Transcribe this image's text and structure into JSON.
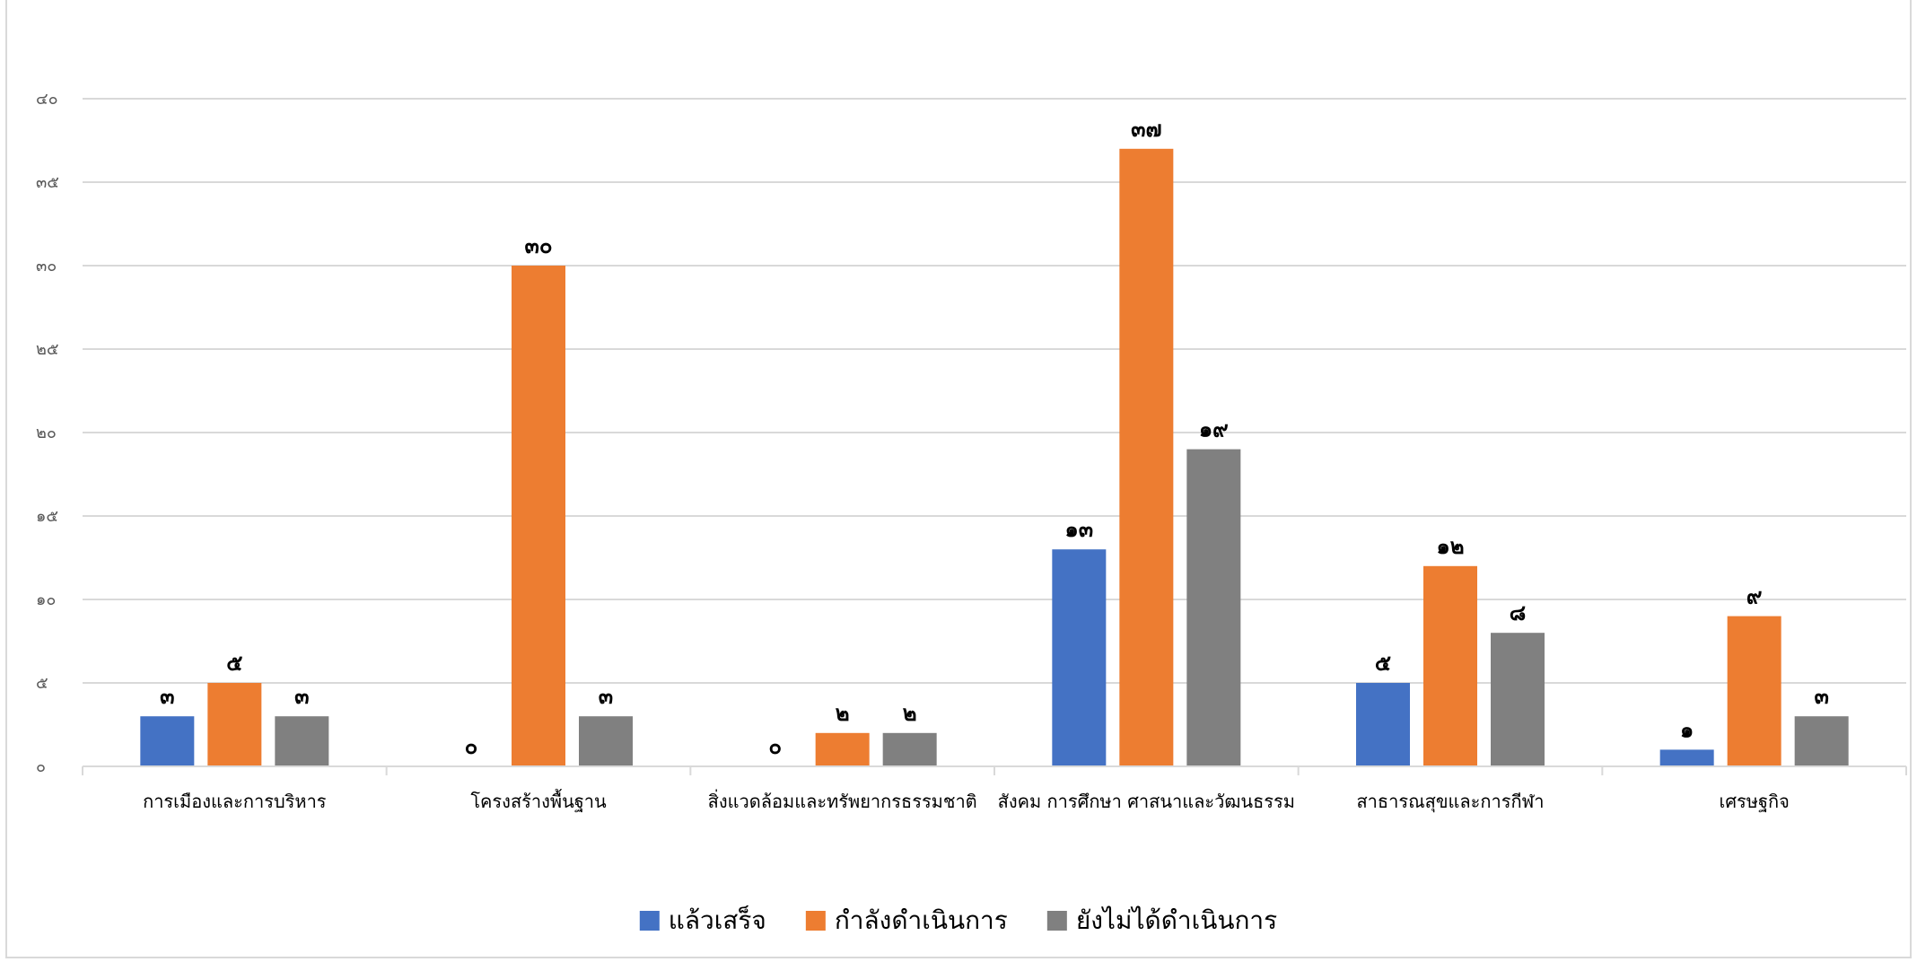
{
  "chart_data": {
    "type": "bar",
    "title": "",
    "xlabel": "",
    "ylabel": "",
    "ylim": [
      0,
      40
    ],
    "yticks": [
      0,
      5,
      10,
      15,
      20,
      25,
      30,
      35,
      40
    ],
    "ytick_labels": [
      "๐",
      "๕",
      "๑๐",
      "๑๕",
      "๒๐",
      "๒๕",
      "๓๐",
      "๓๕",
      "๔๐"
    ],
    "grid": true,
    "legend_position": "bottom",
    "categories": [
      "การเมืองและการบริหาร",
      "โครงสร้างพื้นฐาน",
      "สิ่งแวดล้อมและทรัพยากรธรรมชาติ",
      "สังคม การศึกษา ศาสนาและวัฒนธรรม",
      "สาธารณสุขและการกีฬา",
      "เศรษฐกิจ"
    ],
    "series": [
      {
        "name": "แล้วเสร็จ",
        "color": "#4472c4",
        "values": [
          3,
          0,
          0,
          13,
          5,
          1
        ],
        "labels": [
          "๓",
          "๐",
          "๐",
          "๑๓",
          "๕",
          "๑"
        ]
      },
      {
        "name": "กำลังดำเนินการ",
        "color": "#ed7d31",
        "values": [
          5,
          30,
          2,
          37,
          12,
          9
        ],
        "labels": [
          "๕",
          "๓๐",
          "๒",
          "๓๗",
          "๑๒",
          "๙"
        ]
      },
      {
        "name": "ยังไม่ได้ดำเนินการ",
        "color": "#808080",
        "values": [
          3,
          3,
          2,
          19,
          8,
          3
        ],
        "labels": [
          "๓",
          "๓",
          "๒",
          "๑๙",
          "๘",
          "๓"
        ]
      }
    ]
  }
}
